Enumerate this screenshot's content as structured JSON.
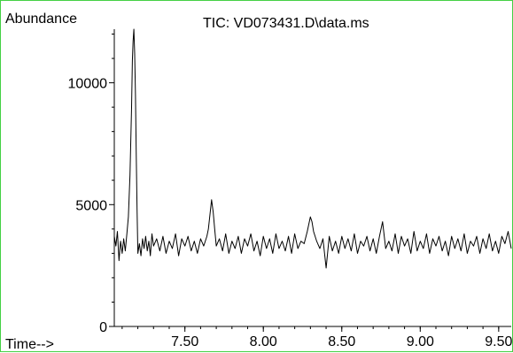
{
  "chart_data": {
    "type": "line",
    "title": "TIC: VD073431.D\\data.ms",
    "ylabel": "Abundance",
    "xlabel": "Time-->",
    "xlim": [
      7.05,
      9.58
    ],
    "ylim": [
      0,
      12200
    ],
    "x_ticks": [
      7.5,
      8.0,
      8.5,
      9.0,
      9.5
    ],
    "x_tick_labels": [
      "7.50",
      "8.00",
      "8.50",
      "9.00",
      "9.50"
    ],
    "y_ticks": [
      0,
      5000,
      10000
    ],
    "y_tick_labels": [
      "0",
      "5000",
      "10000"
    ],
    "grid": false,
    "legend": "none",
    "series": [
      {
        "color": "#000000",
        "x": [
          7.05,
          7.06,
          7.07,
          7.08,
          7.09,
          7.1,
          7.11,
          7.12,
          7.13,
          7.14,
          7.15,
          7.16,
          7.165,
          7.17,
          7.175,
          7.18,
          7.185,
          7.19,
          7.195,
          7.2,
          7.21,
          7.22,
          7.23,
          7.24,
          7.25,
          7.26,
          7.27,
          7.28,
          7.29,
          7.3,
          7.32,
          7.34,
          7.36,
          7.38,
          7.4,
          7.42,
          7.44,
          7.46,
          7.48,
          7.5,
          7.52,
          7.54,
          7.56,
          7.58,
          7.6,
          7.62,
          7.64,
          7.65,
          7.66,
          7.67,
          7.68,
          7.69,
          7.7,
          7.72,
          7.74,
          7.76,
          7.78,
          7.8,
          7.82,
          7.84,
          7.86,
          7.88,
          7.9,
          7.92,
          7.94,
          7.96,
          7.98,
          8.0,
          8.02,
          8.04,
          8.06,
          8.08,
          8.1,
          8.12,
          8.14,
          8.16,
          8.18,
          8.2,
          8.22,
          8.24,
          8.26,
          8.28,
          8.3,
          8.31,
          8.32,
          8.34,
          8.36,
          8.38,
          8.4,
          8.42,
          8.44,
          8.46,
          8.48,
          8.5,
          8.52,
          8.54,
          8.56,
          8.58,
          8.6,
          8.62,
          8.64,
          8.66,
          8.68,
          8.7,
          8.72,
          8.74,
          8.76,
          8.78,
          8.8,
          8.82,
          8.84,
          8.86,
          8.88,
          8.9,
          8.92,
          8.94,
          8.96,
          8.98,
          9.0,
          9.02,
          9.04,
          9.06,
          9.08,
          9.1,
          9.12,
          9.14,
          9.16,
          9.18,
          9.2,
          9.22,
          9.24,
          9.26,
          9.28,
          9.3,
          9.32,
          9.34,
          9.36,
          9.38,
          9.4,
          9.42,
          9.44,
          9.46,
          9.48,
          9.5,
          9.52,
          9.54,
          9.56,
          9.58
        ],
        "y": [
          3700,
          3300,
          3900,
          2700,
          3500,
          3000,
          3600,
          3100,
          3800,
          4500,
          6200,
          9000,
          10900,
          11700,
          12200,
          11200,
          9500,
          7000,
          4800,
          3000,
          3400,
          2900,
          3600,
          3200,
          3700,
          3100,
          3500,
          2900,
          3800,
          3300,
          3600,
          3100,
          3700,
          3000,
          3500,
          3200,
          3800,
          2900,
          3600,
          3300,
          3700,
          3100,
          3500,
          3000,
          3600,
          3300,
          3700,
          4000,
          4600,
          5200,
          4700,
          4000,
          3300,
          3600,
          3100,
          3800,
          3000,
          3500,
          3200,
          3700,
          3000,
          3600,
          3300,
          3800,
          3100,
          3500,
          2900,
          3700,
          3200,
          3600,
          3000,
          3800,
          3200,
          3500,
          3100,
          3700,
          3000,
          3800,
          3200,
          3500,
          3400,
          3900,
          4500,
          4300,
          3900,
          3500,
          3200,
          3600,
          2400,
          3700,
          3100,
          3500,
          3000,
          3700,
          3200,
          3600,
          3100,
          3800,
          3000,
          3500,
          3300,
          3700,
          3100,
          3600,
          3000,
          3700,
          4300,
          3200,
          3500,
          3100,
          3800,
          3000,
          3700,
          3300,
          3600,
          3000,
          3900,
          3100,
          3500,
          3200,
          3800,
          3000,
          3600,
          3300,
          3700,
          3100,
          3500,
          2900,
          3700,
          3200,
          3600,
          3100,
          3800,
          3000,
          3500,
          3300,
          3700,
          3000,
          3600,
          3200,
          3800,
          3100,
          3500,
          3000,
          3700,
          3400,
          3900,
          3200
        ]
      }
    ]
  },
  "colors": {
    "border": "#44d044",
    "line": "#000000",
    "background": "#ffffff"
  }
}
